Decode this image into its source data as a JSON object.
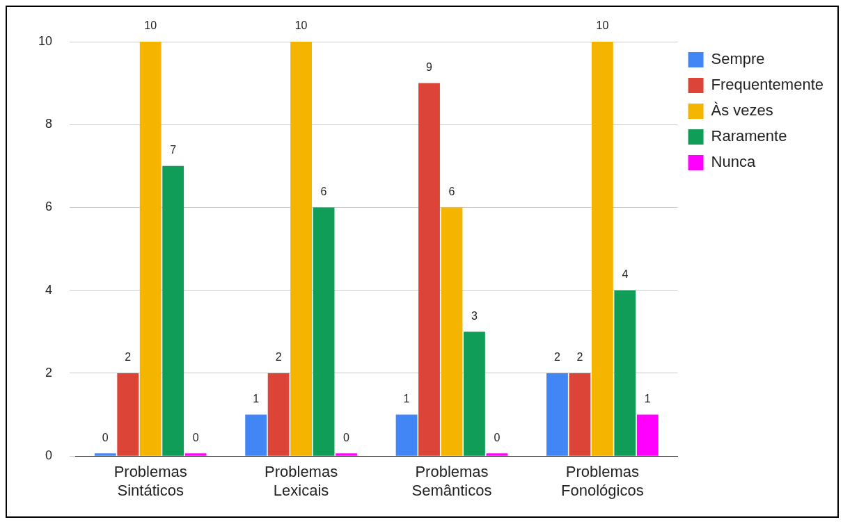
{
  "chart_data": {
    "type": "bar",
    "categories": [
      "Problemas Sintáticos",
      "Problemas Lexicais",
      "Problemas Semânticos",
      "Problemas Fonológicos"
    ],
    "series": [
      {
        "name": "Sempre",
        "color": "#4285f4",
        "values": [
          0,
          1,
          1,
          2
        ]
      },
      {
        "name": "Frequentemente",
        "color": "#db4437",
        "values": [
          2,
          2,
          9,
          2
        ]
      },
      {
        "name": "Às vezes",
        "color": "#f4b400",
        "values": [
          10,
          10,
          6,
          10
        ]
      },
      {
        "name": "Raramente",
        "color": "#0f9d58",
        "values": [
          7,
          6,
          3,
          4
        ]
      },
      {
        "name": "Nunca",
        "color": "#ff00ff",
        "values": [
          0,
          0,
          0,
          1
        ]
      }
    ],
    "ylim": [
      0,
      10
    ],
    "yticks": [
      0,
      2,
      4,
      6,
      8,
      10
    ],
    "grid": "y",
    "legend": "right",
    "data_labels": true
  }
}
